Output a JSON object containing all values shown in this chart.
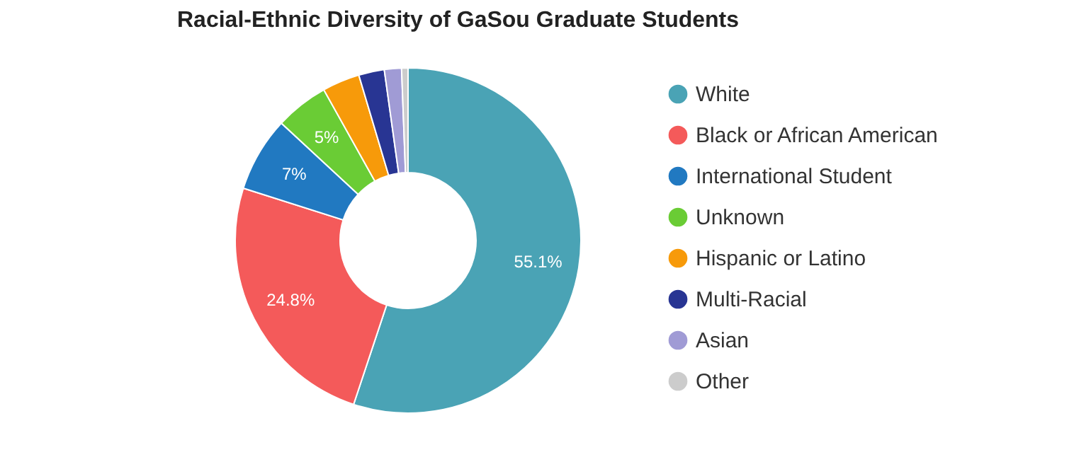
{
  "chart_data": {
    "type": "donut",
    "title": "Racial-Ethnic Diversity of GaSou Graduate Students",
    "categories": [
      "White",
      "Black or African American",
      "International Student",
      "Unknown",
      "Hispanic or Latino",
      "Multi-Racial",
      "Asian",
      "Other"
    ],
    "values": [
      55.1,
      24.8,
      7,
      5,
      3.5,
      2.4,
      1.6,
      0.6
    ],
    "value_labels": [
      "55.1%",
      "24.8%",
      "7%",
      "5%",
      null,
      null,
      null,
      null
    ],
    "colors": [
      "#4aa3b5",
      "#f45a5a",
      "#2179c1",
      "#6acc35",
      "#f79a0a",
      "#283593",
      "#a09bd5",
      "#cccccc"
    ],
    "legend": "right"
  }
}
